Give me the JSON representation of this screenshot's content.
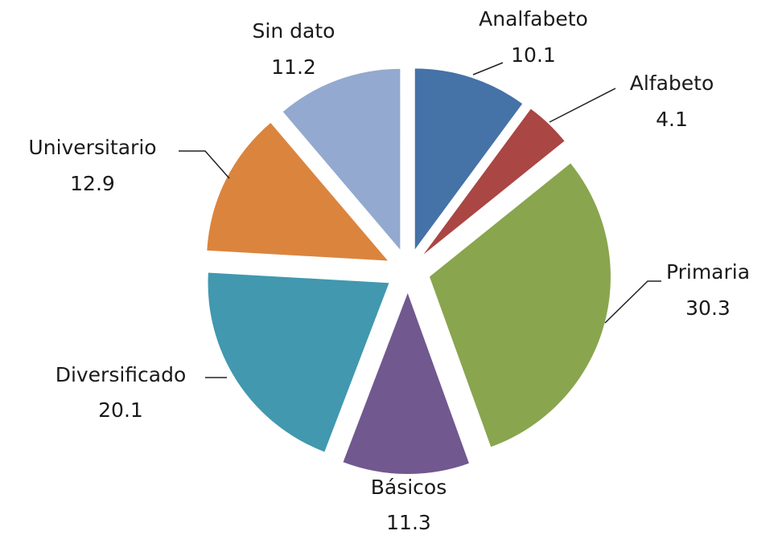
{
  "chart_data": {
    "type": "pie",
    "categories": [
      "Analfabeto",
      "Alfabeto",
      "Primaria",
      "Básicos",
      "Diversificado",
      "Universitario",
      "Sin dato"
    ],
    "values": [
      10.1,
      4.1,
      30.3,
      11.3,
      20.1,
      12.9,
      11.2
    ],
    "colors": [
      "#4572a7",
      "#aa4643",
      "#89a54e",
      "#71588f",
      "#4198af",
      "#db843d",
      "#93a9cf"
    ]
  }
}
